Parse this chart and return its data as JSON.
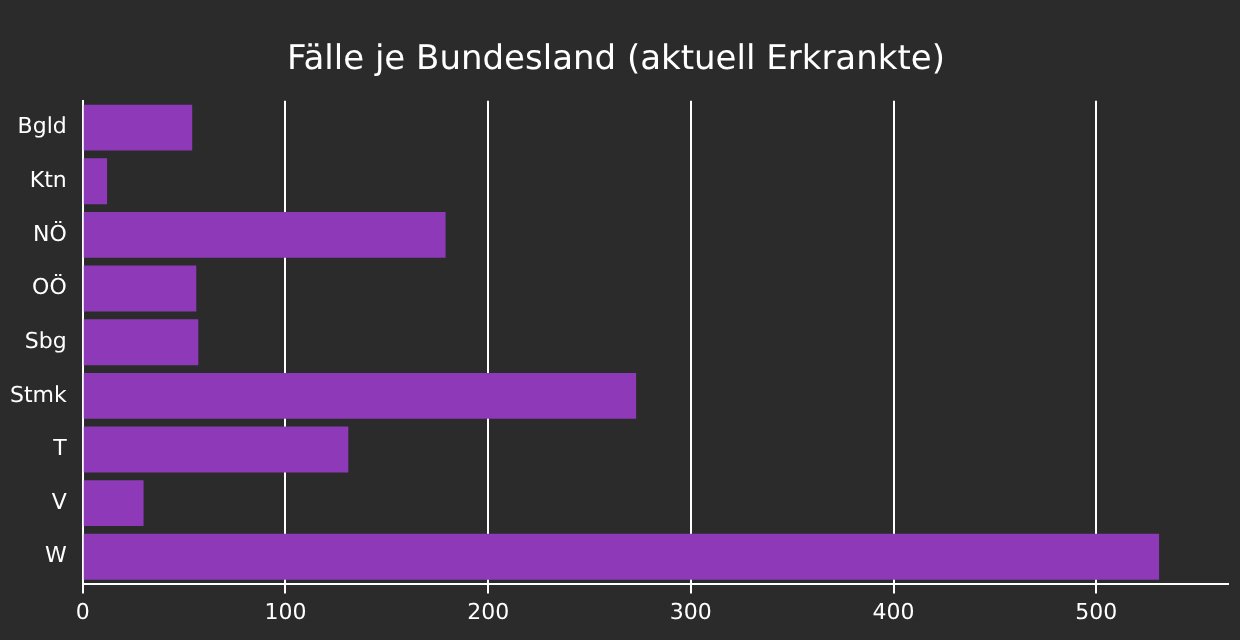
{
  "chart_data": {
    "type": "bar",
    "orientation": "horizontal",
    "title": "Fälle je Bundesland (aktuell Erkrankte)",
    "categories": [
      "Bgld",
      "Ktn",
      "NÖ",
      "OÖ",
      "Sbg",
      "Stmk",
      "T",
      "V",
      "W"
    ],
    "values": [
      54,
      12,
      179,
      56,
      57,
      273,
      131,
      30,
      531
    ],
    "color": "#8e3ab8",
    "xlim": [
      0,
      565
    ],
    "xticks": [
      0,
      100,
      200,
      300,
      400,
      500
    ],
    "grid": "x",
    "legend": false
  }
}
